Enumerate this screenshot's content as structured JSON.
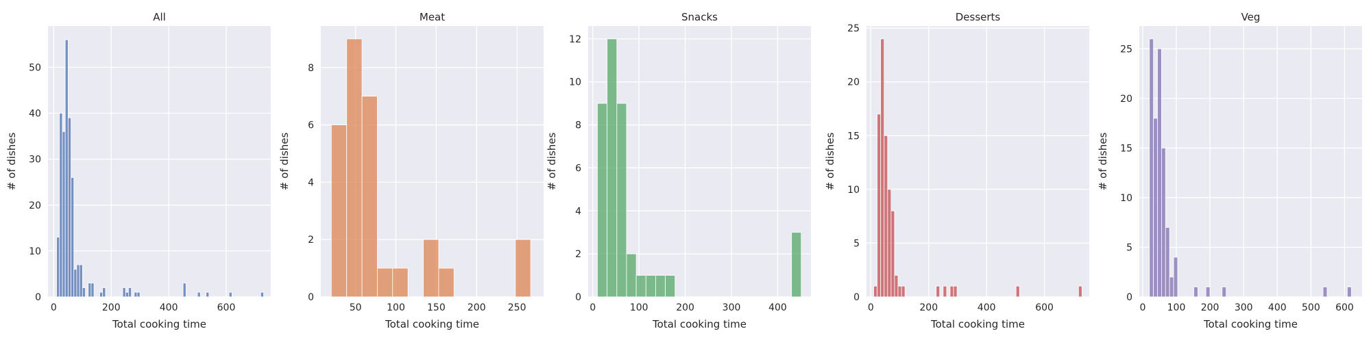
{
  "chart_data": [
    {
      "type": "bar",
      "title": "All",
      "xlabel": "Total cooking time",
      "ylabel": "# of dishes",
      "color": "#4c72b0",
      "xlim": [
        -20,
        755
      ],
      "ylim": [
        0,
        59
      ],
      "xticks": [
        0,
        200,
        400,
        600
      ],
      "yticks": [
        0,
        10,
        20,
        30,
        40,
        50
      ],
      "bin_width": 10,
      "bin_starts": [
        10,
        20,
        30,
        40,
        50,
        60,
        70,
        80,
        90,
        100,
        120,
        130,
        160,
        170,
        240,
        250,
        260,
        280,
        290,
        450,
        500,
        530,
        610,
        720
      ],
      "values": [
        13,
        40,
        36,
        56,
        39,
        26,
        6,
        7,
        7,
        2,
        3,
        3,
        1,
        2,
        2,
        1,
        2,
        1,
        1,
        3,
        1,
        1,
        1,
        1
      ],
      "grid": true
    },
    {
      "type": "bar",
      "title": "Meat",
      "xlabel": "Total cooking time",
      "ylabel": "# of dishes",
      "color": "#dd8452",
      "xlim": [
        7,
        283
      ],
      "ylim": [
        0,
        9.45
      ],
      "xticks": [
        50,
        100,
        150,
        200,
        250
      ],
      "yticks": [
        0,
        2,
        4,
        6,
        8
      ],
      "bin_width": 19,
      "bin_starts": [
        20,
        39,
        58,
        77,
        96,
        134,
        153,
        248
      ],
      "values": [
        6,
        9,
        7,
        1,
        1,
        2,
        1,
        2
      ],
      "grid": true
    },
    {
      "type": "bar",
      "title": "Snacks",
      "xlabel": "Total cooking time",
      "ylabel": "# of dishes",
      "color": "#55a868",
      "xlim": [
        -10,
        472
      ],
      "ylim": [
        0,
        12.6
      ],
      "xticks": [
        0,
        100,
        200,
        300,
        400
      ],
      "yticks": [
        0,
        2,
        4,
        6,
        8,
        10,
        12
      ],
      "bin_width": 21,
      "bin_starts": [
        10,
        31,
        52,
        73,
        94,
        115,
        136,
        157,
        430
      ],
      "values": [
        9,
        12,
        9,
        2,
        1,
        1,
        1,
        1,
        3
      ],
      "grid": true
    },
    {
      "type": "bar",
      "title": "Desserts",
      "xlabel": "Total cooking time",
      "ylabel": "# of dishes",
      "color": "#c44e52",
      "xlim": [
        -15,
        755
      ],
      "ylim": [
        0,
        25.2
      ],
      "xticks": [
        0,
        200,
        400,
        600
      ],
      "yticks": [
        0,
        5,
        10,
        15,
        20,
        25
      ],
      "bin_width": 12,
      "bin_starts": [
        10,
        22,
        34,
        46,
        58,
        70,
        82,
        94,
        106,
        226,
        250,
        274,
        286,
        502,
        718
      ],
      "values": [
        1,
        17,
        24,
        15,
        10,
        8,
        2,
        1,
        1,
        1,
        1,
        1,
        1,
        1,
        1
      ],
      "grid": true
    },
    {
      "type": "bar",
      "title": "Veg",
      "xlabel": "Total cooking time",
      "ylabel": "# of dishes",
      "color": "#8172b3",
      "xlim": [
        -10,
        652
      ],
      "ylim": [
        0,
        27.3
      ],
      "xticks": [
        0,
        100,
        200,
        300,
        400,
        500,
        600
      ],
      "yticks": [
        0,
        5,
        10,
        15,
        20,
        25
      ],
      "bin_width": 12,
      "bin_starts": [
        20,
        32,
        44,
        56,
        68,
        80,
        92,
        152,
        188,
        236,
        536,
        608
      ],
      "values": [
        26,
        18,
        25,
        15,
        7,
        2,
        4,
        1,
        1,
        1,
        1,
        1
      ],
      "grid": true
    }
  ]
}
